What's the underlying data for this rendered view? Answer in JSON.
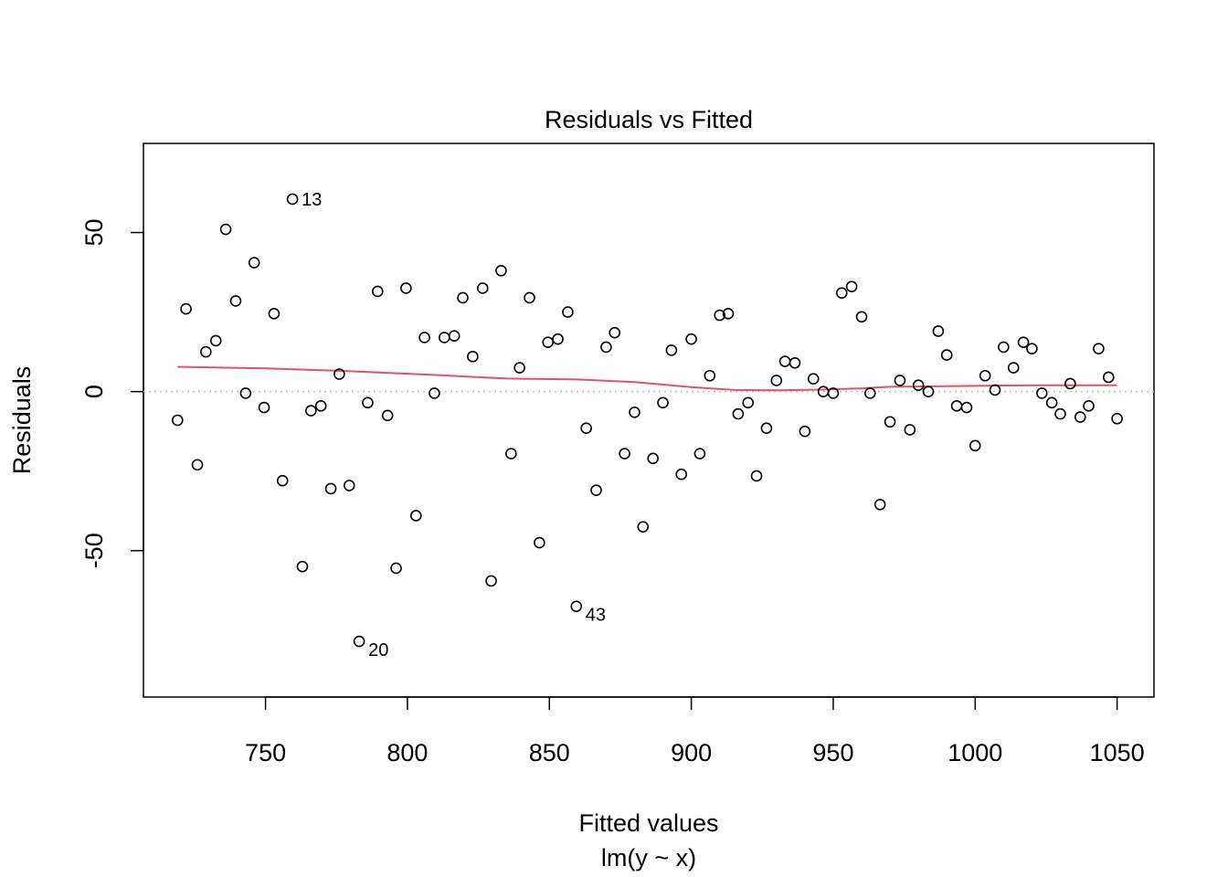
{
  "chart_data": {
    "type": "scatter",
    "title": "Residuals vs Fitted",
    "xlabel": "Fitted values",
    "sublabel": "lm(y ~ x)",
    "ylabel": "Residuals",
    "xlim": [
      707,
      1063
    ],
    "ylim": [
      -96,
      78
    ],
    "xticks": [
      750,
      800,
      850,
      900,
      950,
      1000,
      1050
    ],
    "xtick_labels": [
      "750",
      "800",
      "850",
      "900",
      "950",
      "1000",
      "1050"
    ],
    "yticks": [
      -50,
      0,
      50
    ],
    "ytick_labels": [
      "-50",
      "0",
      "50"
    ],
    "grid": false,
    "reference_line": {
      "y": 0,
      "style": "dotted",
      "color": "#BEBEBE"
    },
    "point_style": {
      "shape": "open-circle",
      "color": "#000000"
    },
    "points": [
      {
        "x": 719,
        "y": -9
      },
      {
        "x": 722,
        "y": 26
      },
      {
        "x": 726,
        "y": -23
      },
      {
        "x": 729,
        "y": 12.5
      },
      {
        "x": 732.5,
        "y": 16
      },
      {
        "x": 736,
        "y": 51
      },
      {
        "x": 739.5,
        "y": 28.5
      },
      {
        "x": 743,
        "y": -0.5
      },
      {
        "x": 746,
        "y": 40.5
      },
      {
        "x": 749.5,
        "y": -5
      },
      {
        "x": 753,
        "y": 24.5
      },
      {
        "x": 756,
        "y": -28
      },
      {
        "x": 759.5,
        "y": 60.5
      },
      {
        "x": 763,
        "y": -55
      },
      {
        "x": 766,
        "y": -6
      },
      {
        "x": 769.5,
        "y": -4.5
      },
      {
        "x": 773,
        "y": -30.5
      },
      {
        "x": 776,
        "y": 5.5
      },
      {
        "x": 779.5,
        "y": -29.5
      },
      {
        "x": 783,
        "y": -78.5
      },
      {
        "x": 786,
        "y": -3.5
      },
      {
        "x": 789.5,
        "y": 31.5
      },
      {
        "x": 793,
        "y": -7.5
      },
      {
        "x": 796,
        "y": -55.5
      },
      {
        "x": 799.5,
        "y": 32.5
      },
      {
        "x": 803,
        "y": -39
      },
      {
        "x": 806,
        "y": 17
      },
      {
        "x": 809.5,
        "y": -0.5
      },
      {
        "x": 813,
        "y": 17
      },
      {
        "x": 816.5,
        "y": 17.5
      },
      {
        "x": 819.5,
        "y": 29.5
      },
      {
        "x": 823,
        "y": 11
      },
      {
        "x": 826.5,
        "y": 32.5
      },
      {
        "x": 829.5,
        "y": -59.5
      },
      {
        "x": 833,
        "y": 38
      },
      {
        "x": 836.5,
        "y": -19.5
      },
      {
        "x": 839.5,
        "y": 7.5
      },
      {
        "x": 843,
        "y": 29.5
      },
      {
        "x": 846.5,
        "y": -47.5
      },
      {
        "x": 849.5,
        "y": 15.5
      },
      {
        "x": 853,
        "y": 16.5
      },
      {
        "x": 856.5,
        "y": 25
      },
      {
        "x": 859.5,
        "y": -67.5
      },
      {
        "x": 863,
        "y": -11.5
      },
      {
        "x": 866.5,
        "y": -31
      },
      {
        "x": 870,
        "y": 14
      },
      {
        "x": 873,
        "y": 18.5
      },
      {
        "x": 876.5,
        "y": -19.5
      },
      {
        "x": 880,
        "y": -6.5
      },
      {
        "x": 883,
        "y": -42.5
      },
      {
        "x": 886.5,
        "y": -21
      },
      {
        "x": 890,
        "y": -3.5
      },
      {
        "x": 893,
        "y": 13
      },
      {
        "x": 896.5,
        "y": -26
      },
      {
        "x": 900,
        "y": 16.5
      },
      {
        "x": 903,
        "y": -19.5
      },
      {
        "x": 906.5,
        "y": 5
      },
      {
        "x": 910,
        "y": 24
      },
      {
        "x": 913,
        "y": 24.5
      },
      {
        "x": 916.5,
        "y": -7
      },
      {
        "x": 920,
        "y": -3.5
      },
      {
        "x": 923,
        "y": -26.5
      },
      {
        "x": 926.5,
        "y": -11.5
      },
      {
        "x": 930,
        "y": 3.5
      },
      {
        "x": 933,
        "y": 9.5
      },
      {
        "x": 936.5,
        "y": 9
      },
      {
        "x": 940,
        "y": -12.5
      },
      {
        "x": 943,
        "y": 4
      },
      {
        "x": 946.5,
        "y": 0
      },
      {
        "x": 950,
        "y": -0.5
      },
      {
        "x": 953,
        "y": 31
      },
      {
        "x": 956.5,
        "y": 33
      },
      {
        "x": 960,
        "y": 23.5
      },
      {
        "x": 963,
        "y": -0.5
      },
      {
        "x": 966.5,
        "y": -35.5
      },
      {
        "x": 970,
        "y": -9.5
      },
      {
        "x": 973.5,
        "y": 3.5
      },
      {
        "x": 977,
        "y": -12
      },
      {
        "x": 980,
        "y": 2
      },
      {
        "x": 983.5,
        "y": 0
      },
      {
        "x": 987,
        "y": 19
      },
      {
        "x": 990,
        "y": 11.5
      },
      {
        "x": 993.5,
        "y": -4.5
      },
      {
        "x": 997,
        "y": -5
      },
      {
        "x": 1000,
        "y": -17
      },
      {
        "x": 1003.5,
        "y": 5
      },
      {
        "x": 1007,
        "y": 0.5
      },
      {
        "x": 1010,
        "y": 14
      },
      {
        "x": 1013.5,
        "y": 7.5
      },
      {
        "x": 1017,
        "y": 15.5
      },
      {
        "x": 1020,
        "y": 13.5
      },
      {
        "x": 1023.5,
        "y": -0.5
      },
      {
        "x": 1027,
        "y": -3.5
      },
      {
        "x": 1030,
        "y": -7
      },
      {
        "x": 1033.5,
        "y": 2.5
      },
      {
        "x": 1037,
        "y": -8
      },
      {
        "x": 1040,
        "y": -4.5
      },
      {
        "x": 1043.5,
        "y": 13.5
      },
      {
        "x": 1047,
        "y": 4.5
      },
      {
        "x": 1050,
        "y": -8.5
      }
    ],
    "labeled_points": [
      {
        "label": "13",
        "x": 759.5,
        "y": 60.5
      },
      {
        "label": "20",
        "x": 783,
        "y": -78.5
      },
      {
        "label": "43",
        "x": 859.5,
        "y": -67.5
      }
    ],
    "smooth_line": {
      "color": "#DF536B",
      "x": [
        719,
        750,
        780,
        810,
        835,
        860,
        880,
        900,
        915,
        930,
        945,
        960,
        970,
        990,
        1010,
        1030,
        1050
      ],
      "y": [
        7.8,
        7.3,
        6.4,
        5.2,
        4.1,
        3.8,
        3.0,
        1.4,
        0.5,
        0.4,
        0.6,
        1.0,
        1.5,
        1.7,
        1.9,
        2.0,
        2.0
      ]
    }
  }
}
